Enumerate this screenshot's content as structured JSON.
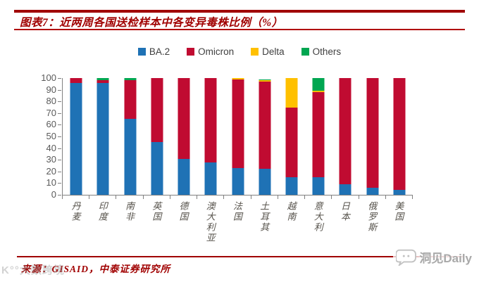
{
  "header": {
    "title": "图表7：近两周各国送检样本中各变异毒株比例（%）"
  },
  "legend": {
    "items": [
      {
        "label": "BA.2",
        "color": "#1F72B5"
      },
      {
        "label": "Omicron",
        "color": "#C00B31"
      },
      {
        "label": "Delta",
        "color": "#FFC000"
      },
      {
        "label": "Others",
        "color": "#00A651"
      }
    ]
  },
  "chart_data": {
    "type": "bar",
    "stacked": true,
    "title": "近两周各国送检样本中各变异毒株比例（%）",
    "xlabel": "",
    "ylabel": "",
    "ylim": [
      0,
      100
    ],
    "yticks": [
      0,
      10,
      20,
      30,
      40,
      50,
      60,
      70,
      80,
      90,
      100
    ],
    "grid": false,
    "legend_position": "top",
    "categories": [
      "丹麦",
      "印度",
      "南非",
      "英国",
      "德国",
      "澳大利亚",
      "法国",
      "土耳其",
      "越南",
      "意大利",
      "日本",
      "俄罗斯",
      "美国"
    ],
    "series": [
      {
        "name": "BA.2",
        "color": "#1F72B5",
        "values": [
          96,
          96,
          65,
          45,
          31,
          28,
          23,
          22,
          15,
          15,
          9,
          6,
          4
        ]
      },
      {
        "name": "Omicron",
        "color": "#C00B31",
        "values": [
          4,
          2,
          33,
          55,
          69,
          72,
          76,
          75,
          60,
          73,
          91,
          94,
          96
        ]
      },
      {
        "name": "Delta",
        "color": "#FFC000",
        "values": [
          0,
          0,
          0,
          0,
          0,
          0,
          1,
          1,
          25,
          1,
          0,
          0,
          0
        ]
      },
      {
        "name": "Others",
        "color": "#00A651",
        "values": [
          0,
          2,
          2,
          0,
          0,
          0,
          0,
          1,
          0,
          11,
          0,
          0,
          0
        ]
      }
    ]
  },
  "footer": {
    "source": "来源：GISAID，中泰证券研究所"
  },
  "watermarks": {
    "left": "K°°大数跨境",
    "right": "洞见Daily"
  },
  "colors": {
    "accent_red": "#A00000",
    "axis_gray": "#808080",
    "tick_text": "#595959",
    "category_text": "#56524b"
  }
}
